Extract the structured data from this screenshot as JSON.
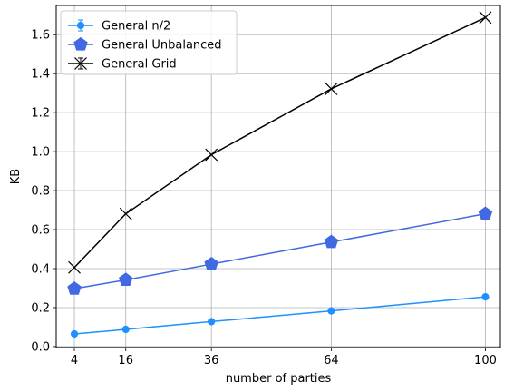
{
  "chart_data": {
    "type": "line",
    "title": "",
    "xlabel": "number of parties",
    "ylabel": "KB",
    "x": [
      4,
      16,
      36,
      64,
      100
    ],
    "x_ticks": [
      "4",
      "16",
      "36",
      "64",
      "100"
    ],
    "y_ticks": [
      "0.0",
      "0.2",
      "0.4",
      "0.6",
      "0.8",
      "1.0",
      "1.2",
      "1.4",
      "1.6"
    ],
    "xlim": [
      -0.24,
      103.5
    ],
    "ylim": [
      -0.005,
      1.75
    ],
    "grid": true,
    "legend_position": "top-left",
    "series": [
      {
        "name": "General n/2",
        "values": [
          0.065,
          0.088,
          0.128,
          0.183,
          0.255
        ],
        "color": "#1e90ff",
        "marker": "circle"
      },
      {
        "name": "General Unbalanced",
        "values": [
          0.297,
          0.342,
          0.423,
          0.536,
          0.681
        ],
        "color": "#4169e1",
        "marker": "pentagon"
      },
      {
        "name": "General Grid",
        "values": [
          0.406,
          0.681,
          0.984,
          1.322,
          1.688
        ],
        "color": "#000000",
        "marker": "x"
      }
    ]
  }
}
